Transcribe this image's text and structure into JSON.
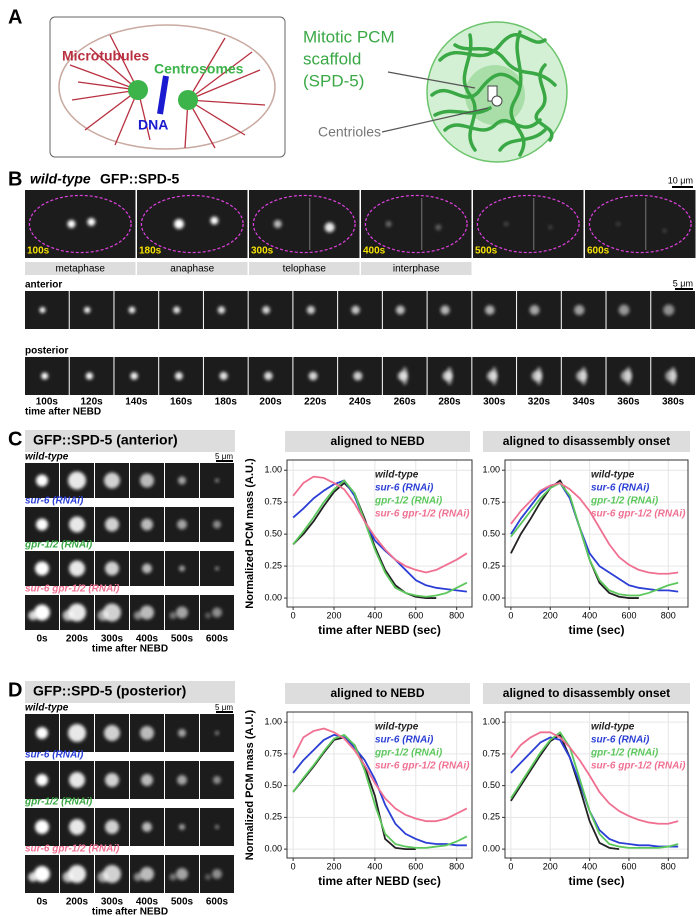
{
  "panel_a": {
    "label": "A",
    "microtubules": "Microtubules",
    "centrosomes": "Centrosomes",
    "dna": "DNA",
    "scaffold": [
      "Mitotic PCM",
      "scaffold",
      "(SPD-5)"
    ],
    "centrioles": "Centrioles"
  },
  "panel_b": {
    "label": "B",
    "genotype": "wild-type",
    "marker": "GFP::SPD-5",
    "scale_top": "10 μm",
    "stills": [
      "100s",
      "180s",
      "300s",
      "400s",
      "500s",
      "600s"
    ],
    "phases": [
      "metaphase",
      "anaphase",
      "telophase",
      "interphase"
    ],
    "row_labels": [
      "anterior",
      "posterior"
    ],
    "scale_rows": "5 μm",
    "times": [
      "100s",
      "120s",
      "140s",
      "160s",
      "180s",
      "200s",
      "220s",
      "240s",
      "260s",
      "280s",
      "300s",
      "320s",
      "340s",
      "360s",
      "380s"
    ],
    "time_caption": "time after NEBD"
  },
  "panel_c": {
    "label": "C",
    "image_title": "GFP::SPD-5  (anterior)",
    "scale": "5 μm",
    "conditions": [
      "wild-type",
      "sur-6 (RNAi)",
      "gpr-1/2 (RNAi)",
      "sur-6 gpr-1/2 (RNAi)"
    ],
    "times": [
      "0s",
      "200s",
      "300s",
      "400s",
      "500s",
      "600s"
    ],
    "time_caption": "time after NEBD"
  },
  "panel_d": {
    "label": "D",
    "image_title": "GFP::SPD-5  (posterior)",
    "scale": "5 μm",
    "conditions": [
      "wild-type",
      "sur-6 (RNAi)",
      "gpr-1/2 (RNAi)",
      "sur-6 gpr-1/2 (RNAi)"
    ],
    "times": [
      "0s",
      "200s",
      "300s",
      "400s",
      "500s",
      "600s"
    ],
    "time_caption": "time after NEBD"
  },
  "chart_data": [
    {
      "type": "line",
      "title": "aligned to NEBD",
      "ylabel": "Normalized PCM mass (A.U.)",
      "xlabel": "time after NEBD (sec)",
      "x": [
        0,
        50,
        100,
        150,
        200,
        250,
        300,
        350,
        400,
        450,
        500,
        550,
        600,
        650,
        700,
        750,
        800,
        850
      ],
      "xlim": [
        -30,
        875
      ],
      "ylim": [
        -0.07,
        1.08
      ],
      "xticks": [
        0,
        200,
        400,
        600,
        800
      ],
      "yticks": [
        {
          "value": 0,
          "label": "0.00"
        },
        {
          "value": 0.25,
          "label": "0.25"
        },
        {
          "value": 0.5,
          "label": "0.50"
        },
        {
          "value": 0.75,
          "label": "0.75"
        },
        {
          "value": 1,
          "label": "1.00"
        }
      ],
      "grid": true,
      "legend": "upper right",
      "series": [
        {
          "name": "wild-type",
          "color": "#222222",
          "values": [
            0.42,
            0.5,
            0.6,
            0.72,
            0.83,
            0.9,
            0.82,
            0.62,
            0.4,
            0.22,
            0.1,
            0.04,
            0.01,
            0,
            0,
            null,
            null,
            null
          ]
        },
        {
          "name": "sur-6 (RNAi)",
          "color": "#2b3fd6",
          "values": [
            0.63,
            0.7,
            0.78,
            0.84,
            0.89,
            0.92,
            0.8,
            0.6,
            0.45,
            0.37,
            0.3,
            0.22,
            0.14,
            0.1,
            0.08,
            0.07,
            0.06,
            0.05
          ]
        },
        {
          "name": "gpr-1/2 (RNAi)",
          "color": "#5cc85c",
          "values": [
            0.42,
            0.52,
            0.63,
            0.75,
            0.85,
            0.92,
            0.82,
            0.6,
            0.38,
            0.2,
            0.08,
            0.04,
            0.02,
            0.01,
            0.02,
            0.04,
            0.08,
            0.12
          ]
        },
        {
          "name": "sur-6 gpr-1/2 (RNAi)",
          "color": "#f07092",
          "values": [
            0.8,
            0.9,
            0.95,
            0.94,
            0.9,
            0.85,
            0.74,
            0.6,
            0.48,
            0.38,
            0.3,
            0.25,
            0.22,
            0.2,
            0.22,
            0.26,
            0.3,
            0.35
          ]
        }
      ]
    },
    {
      "type": "line",
      "title": "aligned to disassembly onset",
      "xlabel": "time (sec)",
      "x": [
        0,
        50,
        100,
        150,
        200,
        250,
        300,
        350,
        400,
        450,
        500,
        550,
        600,
        650,
        700,
        750,
        800,
        850
      ],
      "xlim": [
        -30,
        900
      ],
      "ylim": [
        -0.07,
        1.08
      ],
      "xticks": [
        0,
        200,
        400,
        600,
        800
      ],
      "yticks": [
        {
          "value": 0,
          "label": "0.00"
        },
        {
          "value": 0.25,
          "label": "0.25"
        },
        {
          "value": 0.5,
          "label": "0.50"
        },
        {
          "value": 0.75,
          "label": "0.75"
        },
        {
          "value": 1,
          "label": "1.00"
        }
      ],
      "grid": true,
      "legend": "upper right",
      "series": [
        {
          "name": "wild-type",
          "color": "#222222",
          "values": [
            0.35,
            0.5,
            0.62,
            0.75,
            0.86,
            0.92,
            0.78,
            0.55,
            0.3,
            0.12,
            0.04,
            0.01,
            0,
            0,
            null,
            null,
            null,
            null
          ]
        },
        {
          "name": "sur-6 (RNAi)",
          "color": "#2b3fd6",
          "values": [
            0.5,
            0.62,
            0.72,
            0.82,
            0.88,
            0.9,
            0.78,
            0.55,
            0.35,
            0.25,
            0.2,
            0.15,
            0.1,
            0.08,
            0.07,
            0.06,
            0.06,
            0.05
          ]
        },
        {
          "name": "gpr-1/2 (RNAi)",
          "color": "#5cc85c",
          "values": [
            0.48,
            0.58,
            0.68,
            0.78,
            0.86,
            0.9,
            0.8,
            0.55,
            0.3,
            0.14,
            0.06,
            0.03,
            0.02,
            0.02,
            0.04,
            0.07,
            0.1,
            0.12
          ]
        },
        {
          "name": "sur-6 gpr-1/2 (RNAi)",
          "color": "#f07092",
          "values": [
            0.58,
            0.68,
            0.76,
            0.84,
            0.88,
            0.9,
            0.85,
            0.78,
            0.68,
            0.55,
            0.42,
            0.32,
            0.26,
            0.22,
            0.2,
            0.19,
            0.19,
            0.2
          ]
        }
      ]
    },
    {
      "type": "line",
      "title": "aligned to NEBD",
      "ylabel": "Normalized PCM mass (A.U.)",
      "xlabel": "time after NEBD (sec)",
      "x": [
        0,
        50,
        100,
        150,
        200,
        250,
        300,
        350,
        400,
        450,
        500,
        550,
        600,
        650,
        700,
        750,
        800,
        850
      ],
      "xlim": [
        -30,
        875
      ],
      "ylim": [
        -0.07,
        1.08
      ],
      "xticks": [
        0,
        200,
        400,
        600,
        800
      ],
      "yticks": [
        {
          "value": 0,
          "label": "0.00"
        },
        {
          "value": 0.25,
          "label": "0.25"
        },
        {
          "value": 0.5,
          "label": "0.50"
        },
        {
          "value": 0.75,
          "label": "0.75"
        },
        {
          "value": 1,
          "label": "1.00"
        }
      ],
      "grid": true,
      "legend": "upper right",
      "series": [
        {
          "name": "wild-type",
          "color": "#222222",
          "values": [
            0.45,
            0.55,
            0.65,
            0.76,
            0.86,
            0.88,
            0.82,
            0.65,
            0.42,
            0.08,
            0.01,
            0,
            0,
            null,
            null,
            null,
            null,
            null
          ]
        },
        {
          "name": "sur-6 (RNAi)",
          "color": "#2b3fd6",
          "values": [
            0.6,
            0.7,
            0.78,
            0.86,
            0.9,
            0.88,
            0.8,
            0.7,
            0.55,
            0.35,
            0.2,
            0.12,
            0.08,
            0.05,
            0.04,
            0.04,
            0.03,
            0.03
          ]
        },
        {
          "name": "gpr-1/2 (RNAi)",
          "color": "#5cc85c",
          "values": [
            0.45,
            0.56,
            0.66,
            0.77,
            0.87,
            0.9,
            0.82,
            0.62,
            0.35,
            0.12,
            0.04,
            0.02,
            0.01,
            0.01,
            0.02,
            0.03,
            0.06,
            0.1
          ]
        },
        {
          "name": "sur-6 gpr-1/2 (RNAi)",
          "color": "#f07092",
          "values": [
            0.72,
            0.88,
            0.93,
            0.95,
            0.92,
            0.87,
            0.78,
            0.66,
            0.52,
            0.4,
            0.32,
            0.27,
            0.24,
            0.22,
            0.22,
            0.24,
            0.28,
            0.32
          ]
        }
      ]
    },
    {
      "type": "line",
      "title": "aligned to disassembly onset",
      "xlabel": "time (sec)",
      "x": [
        0,
        50,
        100,
        150,
        200,
        250,
        300,
        350,
        400,
        450,
        500,
        550,
        600,
        650,
        700,
        750,
        800,
        850
      ],
      "xlim": [
        -30,
        900
      ],
      "ylim": [
        -0.07,
        1.08
      ],
      "xticks": [
        0,
        200,
        400,
        600,
        800
      ],
      "yticks": [
        {
          "value": 0,
          "label": "0.00"
        },
        {
          "value": 0.25,
          "label": "0.25"
        },
        {
          "value": 0.5,
          "label": "0.50"
        },
        {
          "value": 0.75,
          "label": "0.75"
        },
        {
          "value": 1,
          "label": "1.00"
        }
      ],
      "grid": true,
      "legend": "upper right",
      "series": [
        {
          "name": "wild-type",
          "color": "#222222",
          "values": [
            0.38,
            0.5,
            0.62,
            0.74,
            0.85,
            0.9,
            0.72,
            0.48,
            0.22,
            0.05,
            0.01,
            0,
            null,
            null,
            null,
            null,
            null,
            null
          ]
        },
        {
          "name": "sur-6 (RNAi)",
          "color": "#2b3fd6",
          "values": [
            0.6,
            0.68,
            0.76,
            0.84,
            0.88,
            0.86,
            0.72,
            0.52,
            0.3,
            0.15,
            0.08,
            0.05,
            0.04,
            0.03,
            0.03,
            0.02,
            0.02,
            0.02
          ]
        },
        {
          "name": "gpr-1/2 (RNAi)",
          "color": "#5cc85c",
          "values": [
            0.4,
            0.52,
            0.64,
            0.76,
            0.86,
            0.92,
            0.8,
            0.55,
            0.3,
            0.12,
            0.04,
            0.02,
            0.01,
            0.01,
            0.01,
            0.01,
            0.02,
            0.04
          ]
        },
        {
          "name": "sur-6 gpr-1/2 (RNAi)",
          "color": "#f07092",
          "values": [
            0.72,
            0.82,
            0.88,
            0.92,
            0.92,
            0.88,
            0.8,
            0.7,
            0.58,
            0.45,
            0.36,
            0.3,
            0.26,
            0.23,
            0.21,
            0.2,
            0.2,
            0.22
          ]
        }
      ]
    }
  ]
}
